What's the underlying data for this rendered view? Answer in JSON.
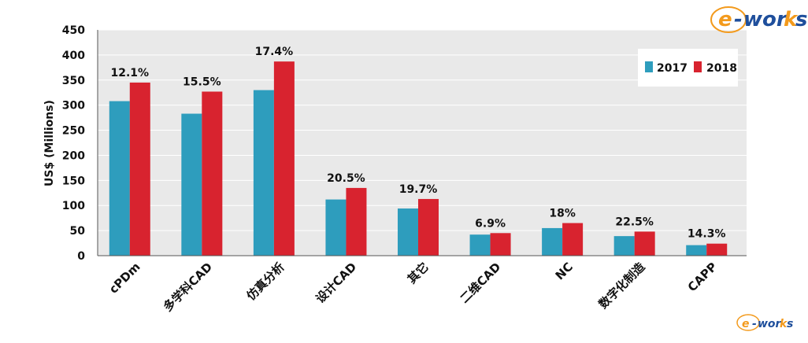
{
  "chart_data": {
    "type": "bar",
    "title": "",
    "ylabel": "US$ (Millions)",
    "xlabel": "",
    "ylim": [
      0,
      450
    ],
    "yticks": [
      0,
      50,
      100,
      150,
      200,
      250,
      300,
      350,
      400,
      450
    ],
    "grid": true,
    "legend_position": "top-right",
    "categories": [
      "cPDm",
      "多学科CAD",
      "仿真分析",
      "设计CAD",
      "其它",
      "二维CAD",
      "NC",
      "数字化制造",
      "CAPP"
    ],
    "series": [
      {
        "name": "2017",
        "color": "#2e9dbd",
        "values": [
          308,
          283,
          330,
          112,
          94,
          42,
          55,
          39,
          21
        ]
      },
      {
        "name": "2018",
        "color": "#d8232f",
        "values": [
          345,
          327,
          387,
          135,
          113,
          45,
          65,
          48,
          24
        ]
      }
    ],
    "growth_labels": [
      "12.1%",
      "15.5%",
      "17.4%",
      "20.5%",
      "19.7%",
      "6.9%",
      "18%",
      "22.5%",
      "14.3%"
    ],
    "plot_background": "#e9e9e9"
  },
  "logo": {
    "text_e": "e",
    "text_dash": "-",
    "text_wor": "wor",
    "text_k": "k",
    "text_s": "s",
    "color_orange": "#f39a1c",
    "color_blue": "#1f4f9c"
  }
}
